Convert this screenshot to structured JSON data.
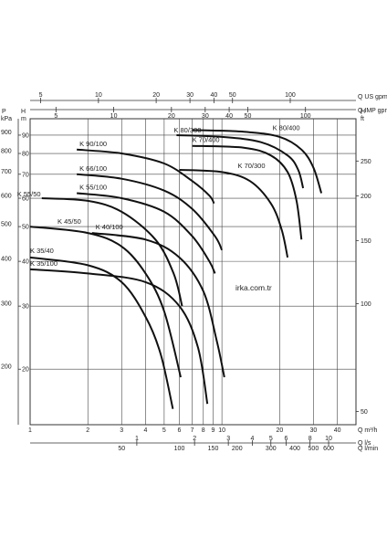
{
  "chart_data": {
    "type": "line",
    "x_scale": "log",
    "y_scale": "log",
    "xlim": [
      1,
      50
    ],
    "ylim": [
      14,
      100
    ],
    "grid": true,
    "top_axes": {
      "us_gpm": {
        "label": "Q US gpm",
        "ticks": [
          "5",
          "10",
          "20",
          "30",
          "40",
          "50",
          "100"
        ],
        "values": [
          5,
          10,
          20,
          30,
          40,
          50,
          100
        ]
      },
      "imp_gpm": {
        "label": "Q IMP gpm",
        "ticks": [
          "5",
          "10",
          "20",
          "30",
          "40",
          "50",
          "100"
        ],
        "values": [
          5,
          10,
          20,
          30,
          40,
          50,
          100
        ]
      }
    },
    "left_axes": {
      "kpa": {
        "label_top": "P",
        "label_bottom": "kPa",
        "ticks": [
          "900",
          "800",
          "700",
          "600",
          "500",
          "400",
          "300",
          "200"
        ],
        "values": [
          900,
          800,
          700,
          600,
          500,
          400,
          300,
          200
        ]
      },
      "m": {
        "label_top": "H",
        "label_bottom": "m",
        "ticks": [
          "90",
          "80",
          "70",
          "60",
          "50",
          "40",
          "30",
          "20"
        ],
        "values": [
          90,
          80,
          70,
          60,
          50,
          40,
          30,
          20
        ]
      }
    },
    "right_axis": {
      "label_top": "H",
      "label_bottom": "ft",
      "ticks": [
        "250",
        "200",
        "150",
        "100",
        "50"
      ],
      "values": [
        250,
        200,
        150,
        100,
        50
      ]
    },
    "bottom_axes": {
      "m3h": {
        "label": "Q m³/h",
        "ticks": [
          "1",
          "2",
          "3",
          "4",
          "5",
          "6",
          "7",
          "8",
          "9",
          "10",
          "20",
          "30",
          "40"
        ],
        "values": [
          1,
          2,
          3,
          4,
          5,
          6,
          7,
          8,
          9,
          10,
          20,
          30,
          40
        ]
      },
      "ls": {
        "label": "Q l/s",
        "ticks": [
          "1",
          "2",
          "3",
          "4",
          "5",
          "6",
          "8",
          "10"
        ],
        "values": [
          1,
          2,
          3,
          4,
          5,
          6,
          8,
          10
        ]
      },
      "lmin": {
        "label": "Q l/min",
        "ticks": [
          "50",
          "100",
          "150",
          "200",
          "300",
          "400",
          "500",
          "600"
        ],
        "values": [
          50,
          100,
          150,
          200,
          300,
          400,
          500,
          600
        ]
      }
    },
    "watermark": "irka.com.tr",
    "series": [
      {
        "name": "K 90/100",
        "x": [
          1.75,
          3,
          5,
          7,
          8.6,
          9.1
        ],
        "y": [
          82,
          80,
          75,
          67,
          61,
          58
        ]
      },
      {
        "name": "K 66/100",
        "x": [
          1.75,
          3,
          5,
          7,
          9.2,
          10
        ],
        "y": [
          70,
          68,
          63,
          56,
          47,
          43
        ]
      },
      {
        "name": "K 55/100",
        "x": [
          1.75,
          3,
          5,
          7,
          8.6,
          9.2
        ],
        "y": [
          62,
          60,
          55,
          47,
          40,
          37
        ]
      },
      {
        "name": "K 55/50",
        "x": [
          1.15,
          2,
          3,
          4.5,
          5.6,
          6.2
        ],
        "y": [
          60,
          59,
          55,
          46,
          37,
          30
        ]
      },
      {
        "name": "K 45/50",
        "x": [
          1.0,
          2,
          3,
          4,
          5,
          6.1
        ],
        "y": [
          50,
          48,
          44,
          37,
          29,
          19
        ]
      },
      {
        "name": "K 40/100",
        "x": [
          2.1,
          4,
          6,
          8,
          9.4,
          10.3
        ],
        "y": [
          48,
          46,
          41,
          33,
          24,
          19
        ]
      },
      {
        "name": "K 35/40",
        "x": [
          1.0,
          2,
          3,
          4,
          4.8,
          5.55
        ],
        "y": [
          41,
          39,
          35,
          28,
          22,
          15.5
        ]
      },
      {
        "name": "K 35/100",
        "x": [
          1.0,
          2,
          4,
          6,
          7.5,
          8.4
        ],
        "y": [
          38,
          37,
          35,
          30,
          23,
          16
        ]
      },
      {
        "name": "K 80/300",
        "x": [
          5.8,
          10,
          16,
          22,
          25,
          26.5
        ],
        "y": [
          90,
          89,
          86,
          79,
          72,
          64
        ]
      },
      {
        "name": "K 80/400",
        "x": [
          7.0,
          13,
          20,
          26,
          30,
          33
        ],
        "y": [
          93,
          92,
          89,
          82,
          73,
          62
        ]
      },
      {
        "name": "K 70/400",
        "x": [
          7.0,
          13,
          18,
          22,
          24.5,
          26
        ],
        "y": [
          84,
          83,
          79,
          71,
          59,
          46
        ]
      },
      {
        "name": "K 70/300",
        "x": [
          6.0,
          10,
          14,
          18,
          20.5,
          22
        ],
        "y": [
          72,
          71,
          67,
          58,
          49,
          41
        ]
      }
    ]
  }
}
